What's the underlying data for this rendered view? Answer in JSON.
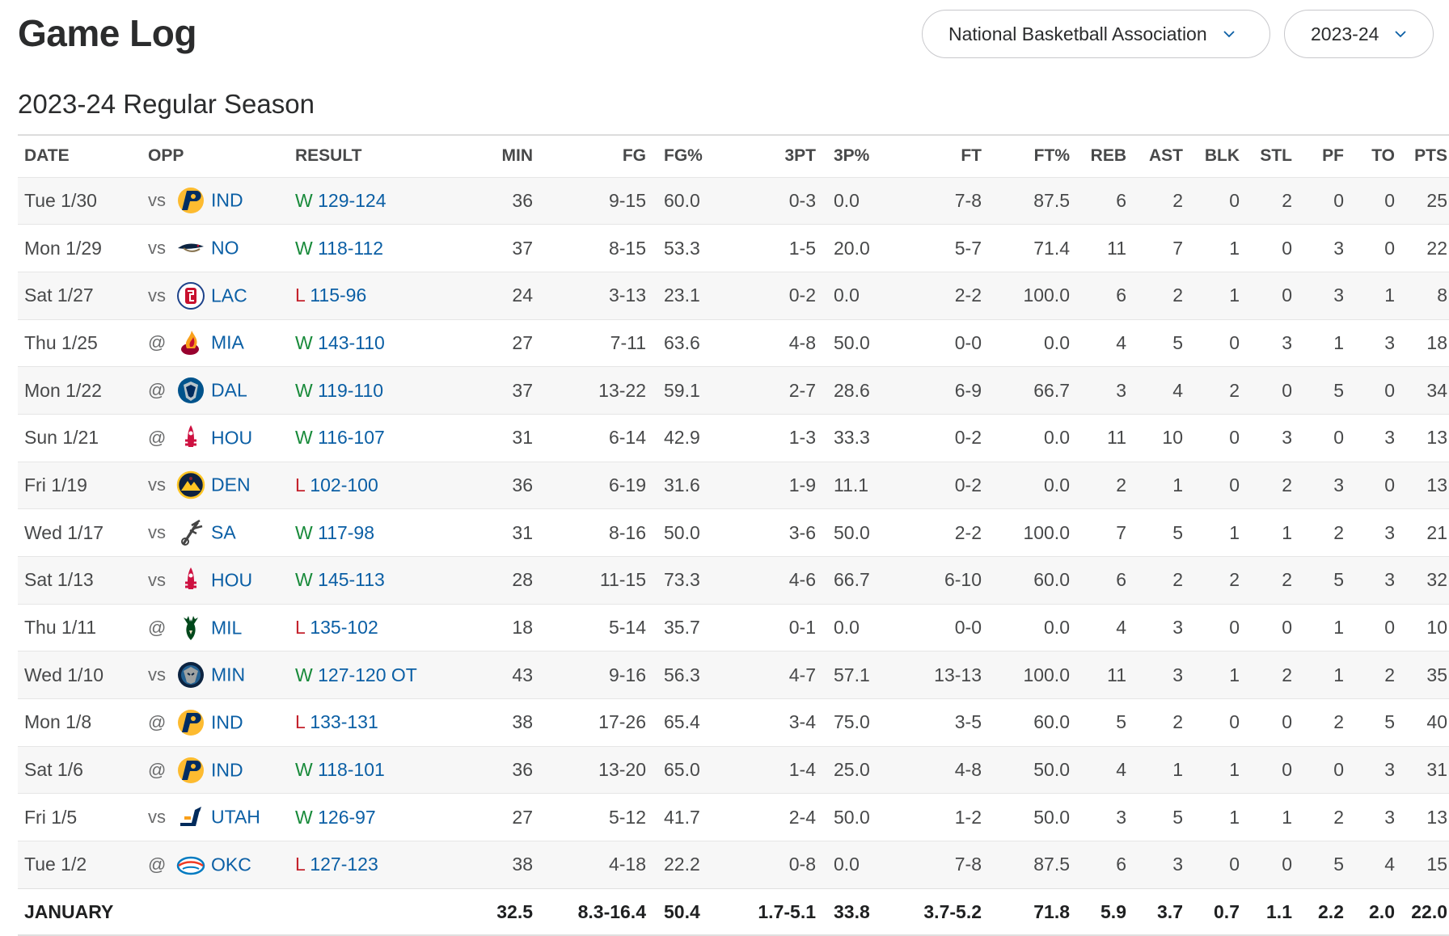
{
  "header": {
    "title": "Game Log"
  },
  "filters": {
    "league": "National Basketball Association",
    "season": "2023-24"
  },
  "section": {
    "title": "2023-24 Regular Season"
  },
  "columns": [
    "DATE",
    "OPP",
    "RESULT",
    "MIN",
    "FG",
    "FG%",
    "3PT",
    "3P%",
    "FT",
    "FT%",
    "REB",
    "AST",
    "BLK",
    "STL",
    "PF",
    "TO",
    "PTS"
  ],
  "games": [
    {
      "date": "Tue 1/30",
      "ha": "vs",
      "team": "IND",
      "logo": "pacers-logo",
      "wl": "W",
      "score": "129-124",
      "min": "36",
      "fg": "9-15",
      "fgp": "60.0",
      "tp": "0-3",
      "tpp": "0.0",
      "ft": "7-8",
      "ftp": "87.5",
      "reb": "6",
      "ast": "2",
      "blk": "0",
      "stl": "2",
      "pf": "0",
      "to": "0",
      "pts": "25"
    },
    {
      "date": "Mon 1/29",
      "ha": "vs",
      "team": "NO",
      "logo": "pelicans-logo",
      "wl": "W",
      "score": "118-112",
      "min": "37",
      "fg": "8-15",
      "fgp": "53.3",
      "tp": "1-5",
      "tpp": "20.0",
      "ft": "5-7",
      "ftp": "71.4",
      "reb": "11",
      "ast": "7",
      "blk": "1",
      "stl": "0",
      "pf": "3",
      "to": "0",
      "pts": "22"
    },
    {
      "date": "Sat 1/27",
      "ha": "vs",
      "team": "LAC",
      "logo": "clippers-logo",
      "wl": "L",
      "score": "115-96",
      "min": "24",
      "fg": "3-13",
      "fgp": "23.1",
      "tp": "0-2",
      "tpp": "0.0",
      "ft": "2-2",
      "ftp": "100.0",
      "reb": "6",
      "ast": "2",
      "blk": "1",
      "stl": "0",
      "pf": "3",
      "to": "1",
      "pts": "8"
    },
    {
      "date": "Thu 1/25",
      "ha": "@",
      "team": "MIA",
      "logo": "heat-logo",
      "wl": "W",
      "score": "143-110",
      "min": "27",
      "fg": "7-11",
      "fgp": "63.6",
      "tp": "4-8",
      "tpp": "50.0",
      "ft": "0-0",
      "ftp": "0.0",
      "reb": "4",
      "ast": "5",
      "blk": "0",
      "stl": "3",
      "pf": "1",
      "to": "3",
      "pts": "18"
    },
    {
      "date": "Mon 1/22",
      "ha": "@",
      "team": "DAL",
      "logo": "mavericks-logo",
      "wl": "W",
      "score": "119-110",
      "min": "37",
      "fg": "13-22",
      "fgp": "59.1",
      "tp": "2-7",
      "tpp": "28.6",
      "ft": "6-9",
      "ftp": "66.7",
      "reb": "3",
      "ast": "4",
      "blk": "2",
      "stl": "0",
      "pf": "5",
      "to": "0",
      "pts": "34"
    },
    {
      "date": "Sun 1/21",
      "ha": "@",
      "team": "HOU",
      "logo": "rockets-logo",
      "wl": "W",
      "score": "116-107",
      "min": "31",
      "fg": "6-14",
      "fgp": "42.9",
      "tp": "1-3",
      "tpp": "33.3",
      "ft": "0-2",
      "ftp": "0.0",
      "reb": "11",
      "ast": "10",
      "blk": "0",
      "stl": "3",
      "pf": "0",
      "to": "3",
      "pts": "13"
    },
    {
      "date": "Fri 1/19",
      "ha": "vs",
      "team": "DEN",
      "logo": "nuggets-logo",
      "wl": "L",
      "score": "102-100",
      "min": "36",
      "fg": "6-19",
      "fgp": "31.6",
      "tp": "1-9",
      "tpp": "11.1",
      "ft": "0-2",
      "ftp": "0.0",
      "reb": "2",
      "ast": "1",
      "blk": "0",
      "stl": "2",
      "pf": "3",
      "to": "0",
      "pts": "13"
    },
    {
      "date": "Wed 1/17",
      "ha": "vs",
      "team": "SA",
      "logo": "spurs-logo",
      "wl": "W",
      "score": "117-98",
      "min": "31",
      "fg": "8-16",
      "fgp": "50.0",
      "tp": "3-6",
      "tpp": "50.0",
      "ft": "2-2",
      "ftp": "100.0",
      "reb": "7",
      "ast": "5",
      "blk": "1",
      "stl": "1",
      "pf": "2",
      "to": "3",
      "pts": "21"
    },
    {
      "date": "Sat 1/13",
      "ha": "vs",
      "team": "HOU",
      "logo": "rockets-logo",
      "wl": "W",
      "score": "145-113",
      "min": "28",
      "fg": "11-15",
      "fgp": "73.3",
      "tp": "4-6",
      "tpp": "66.7",
      "ft": "6-10",
      "ftp": "60.0",
      "reb": "6",
      "ast": "2",
      "blk": "2",
      "stl": "2",
      "pf": "5",
      "to": "3",
      "pts": "32"
    },
    {
      "date": "Thu 1/11",
      "ha": "@",
      "team": "MIL",
      "logo": "bucks-logo",
      "wl": "L",
      "score": "135-102",
      "min": "18",
      "fg": "5-14",
      "fgp": "35.7",
      "tp": "0-1",
      "tpp": "0.0",
      "ft": "0-0",
      "ftp": "0.0",
      "reb": "4",
      "ast": "3",
      "blk": "0",
      "stl": "0",
      "pf": "1",
      "to": "0",
      "pts": "10"
    },
    {
      "date": "Wed 1/10",
      "ha": "vs",
      "team": "MIN",
      "logo": "timberwolves-logo",
      "wl": "W",
      "score": "127-120 OT",
      "min": "43",
      "fg": "9-16",
      "fgp": "56.3",
      "tp": "4-7",
      "tpp": "57.1",
      "ft": "13-13",
      "ftp": "100.0",
      "reb": "11",
      "ast": "3",
      "blk": "1",
      "stl": "2",
      "pf": "1",
      "to": "2",
      "pts": "35"
    },
    {
      "date": "Mon 1/8",
      "ha": "@",
      "team": "IND",
      "logo": "pacers-logo",
      "wl": "L",
      "score": "133-131",
      "min": "38",
      "fg": "17-26",
      "fgp": "65.4",
      "tp": "3-4",
      "tpp": "75.0",
      "ft": "3-5",
      "ftp": "60.0",
      "reb": "5",
      "ast": "2",
      "blk": "0",
      "stl": "0",
      "pf": "2",
      "to": "5",
      "pts": "40"
    },
    {
      "date": "Sat 1/6",
      "ha": "@",
      "team": "IND",
      "logo": "pacers-logo",
      "wl": "W",
      "score": "118-101",
      "min": "36",
      "fg": "13-20",
      "fgp": "65.0",
      "tp": "1-4",
      "tpp": "25.0",
      "ft": "4-8",
      "ftp": "50.0",
      "reb": "4",
      "ast": "1",
      "blk": "1",
      "stl": "0",
      "pf": "0",
      "to": "3",
      "pts": "31"
    },
    {
      "date": "Fri 1/5",
      "ha": "vs",
      "team": "UTAH",
      "logo": "jazz-logo",
      "wl": "W",
      "score": "126-97",
      "min": "27",
      "fg": "5-12",
      "fgp": "41.7",
      "tp": "2-4",
      "tpp": "50.0",
      "ft": "1-2",
      "ftp": "50.0",
      "reb": "3",
      "ast": "5",
      "blk": "1",
      "stl": "1",
      "pf": "2",
      "to": "3",
      "pts": "13"
    },
    {
      "date": "Tue 1/2",
      "ha": "@",
      "team": "OKC",
      "logo": "thunder-logo",
      "wl": "L",
      "score": "127-123",
      "min": "38",
      "fg": "4-18",
      "fgp": "22.2",
      "tp": "0-8",
      "tpp": "0.0",
      "ft": "7-8",
      "ftp": "87.5",
      "reb": "6",
      "ast": "3",
      "blk": "0",
      "stl": "0",
      "pf": "5",
      "to": "4",
      "pts": "15"
    }
  ],
  "summary": {
    "label": "JANUARY",
    "min": "32.5",
    "fg": "8.3-16.4",
    "fgp": "50.4",
    "tp": "1.7-5.1",
    "tpp": "33.8",
    "ft": "3.7-5.2",
    "ftp": "71.8",
    "reb": "5.9",
    "ast": "3.7",
    "blk": "0.7",
    "stl": "1.1",
    "pf": "2.2",
    "to": "2.0",
    "pts": "22.0"
  },
  "colors": {
    "win": "#188a3a",
    "loss": "#c4232d",
    "link": "#0b5fa5"
  }
}
